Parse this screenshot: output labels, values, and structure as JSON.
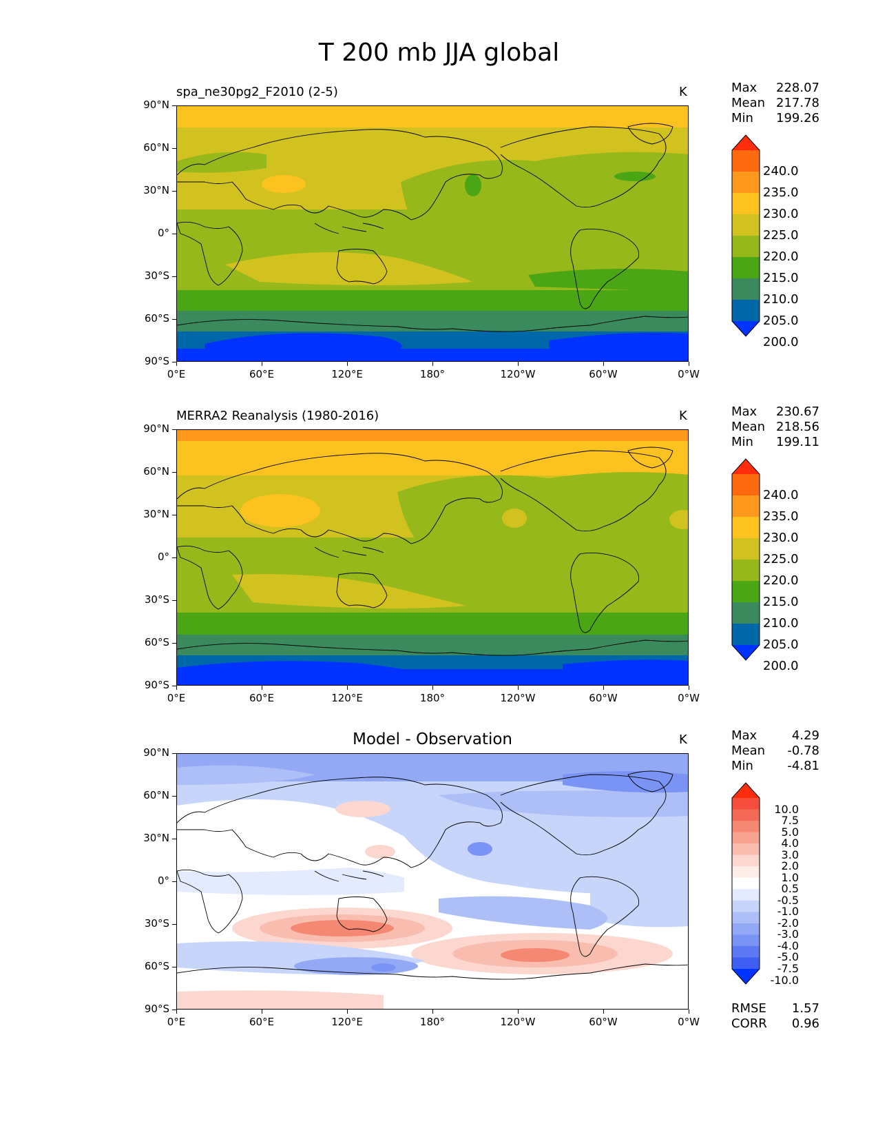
{
  "title": "T 200 mb JJA global",
  "panels": [
    {
      "title": "spa_ne30pg2_F2010 (2-5)",
      "units": "K",
      "stats": [
        {
          "label": "Max",
          "value": "228.07"
        },
        {
          "label": "Mean",
          "value": "217.78"
        },
        {
          "label": "Min",
          "value": "199.26"
        }
      ]
    },
    {
      "title": "MERRA2 Reanalysis (1980-2016)",
      "units": "K",
      "stats": [
        {
          "label": "Max",
          "value": "230.67"
        },
        {
          "label": "Mean",
          "value": "218.56"
        },
        {
          "label": "Min",
          "value": "199.11"
        }
      ]
    },
    {
      "title": "Model - Observation",
      "units": "K",
      "stats": [
        {
          "label": "Max",
          "value": "4.29"
        },
        {
          "label": "Mean",
          "value": "-0.78"
        },
        {
          "label": "Min",
          "value": "-4.81"
        }
      ],
      "footer": [
        {
          "label": "RMSE",
          "value": "1.57"
        },
        {
          "label": "CORR",
          "value": "0.96"
        }
      ]
    }
  ],
  "axes": {
    "lat_ticks": [
      "90°N",
      "60°N",
      "30°N",
      "0°",
      "30°S",
      "60°S",
      "90°S"
    ],
    "lon_ticks": [
      "0°E",
      "60°E",
      "120°E",
      "180°",
      "120°W",
      "60°W",
      "0°W"
    ]
  },
  "colorbars": {
    "temperature": {
      "levels": [
        "240.0",
        "235.0",
        "230.0",
        "225.0",
        "220.0",
        "215.0",
        "210.0",
        "205.0",
        "200.0"
      ],
      "colors": [
        "#ff2d0c",
        "#ff6a10",
        "#ff9a1e",
        "#fcc21f",
        "#d1c21f",
        "#97b81a",
        "#4aa615",
        "#3b8a5e",
        "#0068a8",
        "#0033ff"
      ]
    },
    "difference": {
      "levels": [
        "10.0",
        "7.5",
        "5.0",
        "4.0",
        "3.0",
        "2.0",
        "1.0",
        "0.5",
        "-0.5",
        "-1.0",
        "-2.0",
        "-3.0",
        "-4.0",
        "-5.0",
        "-7.5",
        "-10.0"
      ],
      "colors": [
        "#ff2d0c",
        "#f54e3c",
        "#f46a56",
        "#f58872",
        "#f7a391",
        "#f9bdb0",
        "#fcd7cf",
        "#feeeea",
        "#ffffff",
        "#e4ebff",
        "#c7d5fb",
        "#aebff8",
        "#93a9f6",
        "#7a94f5",
        "#5d79f3",
        "#3f5ef2",
        "#0033ff"
      ]
    }
  },
  "chart_data": [
    {
      "type": "heatmap",
      "title": "spa_ne30pg2_F2010 (2-5)",
      "units": "K",
      "xlim": [
        0,
        360
      ],
      "ylim": [
        -90,
        90
      ],
      "zonal_bands": [
        {
          "lat": [
            75,
            90
          ],
          "value": 227
        },
        {
          "lat": [
            60,
            75
          ],
          "value": 222
        },
        {
          "lat": [
            15,
            60
          ],
          "value": 218
        },
        {
          "lat": [
            -25,
            15
          ],
          "value": 216
        },
        {
          "lat": [
            -45,
            -25
          ],
          "value": 213
        },
        {
          "lat": [
            -58,
            -45
          ],
          "value": 212
        },
        {
          "lat": [
            -70,
            -58
          ],
          "value": 208
        },
        {
          "lat": [
            -80,
            -70
          ],
          "value": 203
        },
        {
          "lat": [
            -90,
            -80
          ],
          "value": 199
        }
      ],
      "max": 228.07,
      "mean": 217.78,
      "min": 199.26
    },
    {
      "type": "heatmap",
      "title": "MERRA2 Reanalysis (1980-2016)",
      "units": "K",
      "xlim": [
        0,
        360
      ],
      "ylim": [
        -90,
        90
      ],
      "zonal_bands": [
        {
          "lat": [
            85,
            90
          ],
          "value": 230
        },
        {
          "lat": [
            70,
            85
          ],
          "value": 227
        },
        {
          "lat": [
            50,
            70
          ],
          "value": 222
        },
        {
          "lat": [
            15,
            50
          ],
          "value": 220
        },
        {
          "lat": [
            -20,
            15
          ],
          "value": 216
        },
        {
          "lat": [
            -45,
            -20
          ],
          "value": 214
        },
        {
          "lat": [
            -58,
            -45
          ],
          "value": 212
        },
        {
          "lat": [
            -70,
            -58
          ],
          "value": 208
        },
        {
          "lat": [
            -80,
            -70
          ],
          "value": 203
        },
        {
          "lat": [
            -90,
            -80
          ],
          "value": 199
        }
      ],
      "max": 230.67,
      "mean": 218.56,
      "min": 199.11
    },
    {
      "type": "heatmap",
      "title": "Model - Observation",
      "units": "K",
      "xlim": [
        0,
        360
      ],
      "ylim": [
        -90,
        90
      ],
      "max": 4.29,
      "mean": -0.78,
      "min": -4.81,
      "rmse": 1.57,
      "corr": 0.96
    }
  ]
}
